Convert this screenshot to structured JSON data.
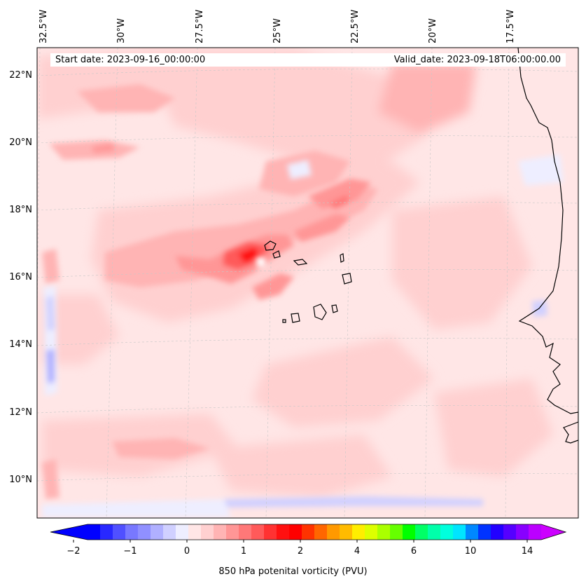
{
  "map": {
    "start_date": "Start date: 2023-09-16_00:00:00",
    "valid_date": "Valid_date: 2023-09-18T06:00:00.00",
    "lon_labels": [
      "32.5°W",
      "30°W",
      "27.5°W",
      "25°W",
      "22.5°W",
      "20°W",
      "17.5°W"
    ],
    "lat_labels": [
      "22°N",
      "20°N",
      "18°N",
      "16°N",
      "14°N",
      "12°N",
      "10°N"
    ],
    "background_color": "#ffe6e6",
    "coastline_color": "#000000",
    "gridline_color": "#c8c8c8"
  },
  "colorbar": {
    "title": "850 hPa potenital vorticity (PVU)",
    "tick_labels": [
      "−2",
      "−1",
      "0",
      "1",
      "2",
      "4",
      "6",
      "10",
      "14"
    ],
    "colors": [
      "#0000ff",
      "#2828ff",
      "#5050ff",
      "#7878ff",
      "#9090ff",
      "#b0b0ff",
      "#d0d0ff",
      "#eeeeff",
      "#ffe6e6",
      "#ffd0d0",
      "#ffb4b4",
      "#ff9696",
      "#ff7878",
      "#ff5a5a",
      "#ff3232",
      "#ff1010",
      "#ff0000",
      "#ff3300",
      "#ff6600",
      "#ff9900",
      "#ffbb00",
      "#ffee00",
      "#ddff00",
      "#aaff00",
      "#66ff00",
      "#00ff00",
      "#00ff66",
      "#00ffaa",
      "#00ffdd",
      "#00e5ff",
      "#0088ff",
      "#0033ff",
      "#2200ff",
      "#5500ff",
      "#8800ff",
      "#bb00ff"
    ],
    "under_color": "#0000ff",
    "over_color": "#cc00ff"
  }
}
